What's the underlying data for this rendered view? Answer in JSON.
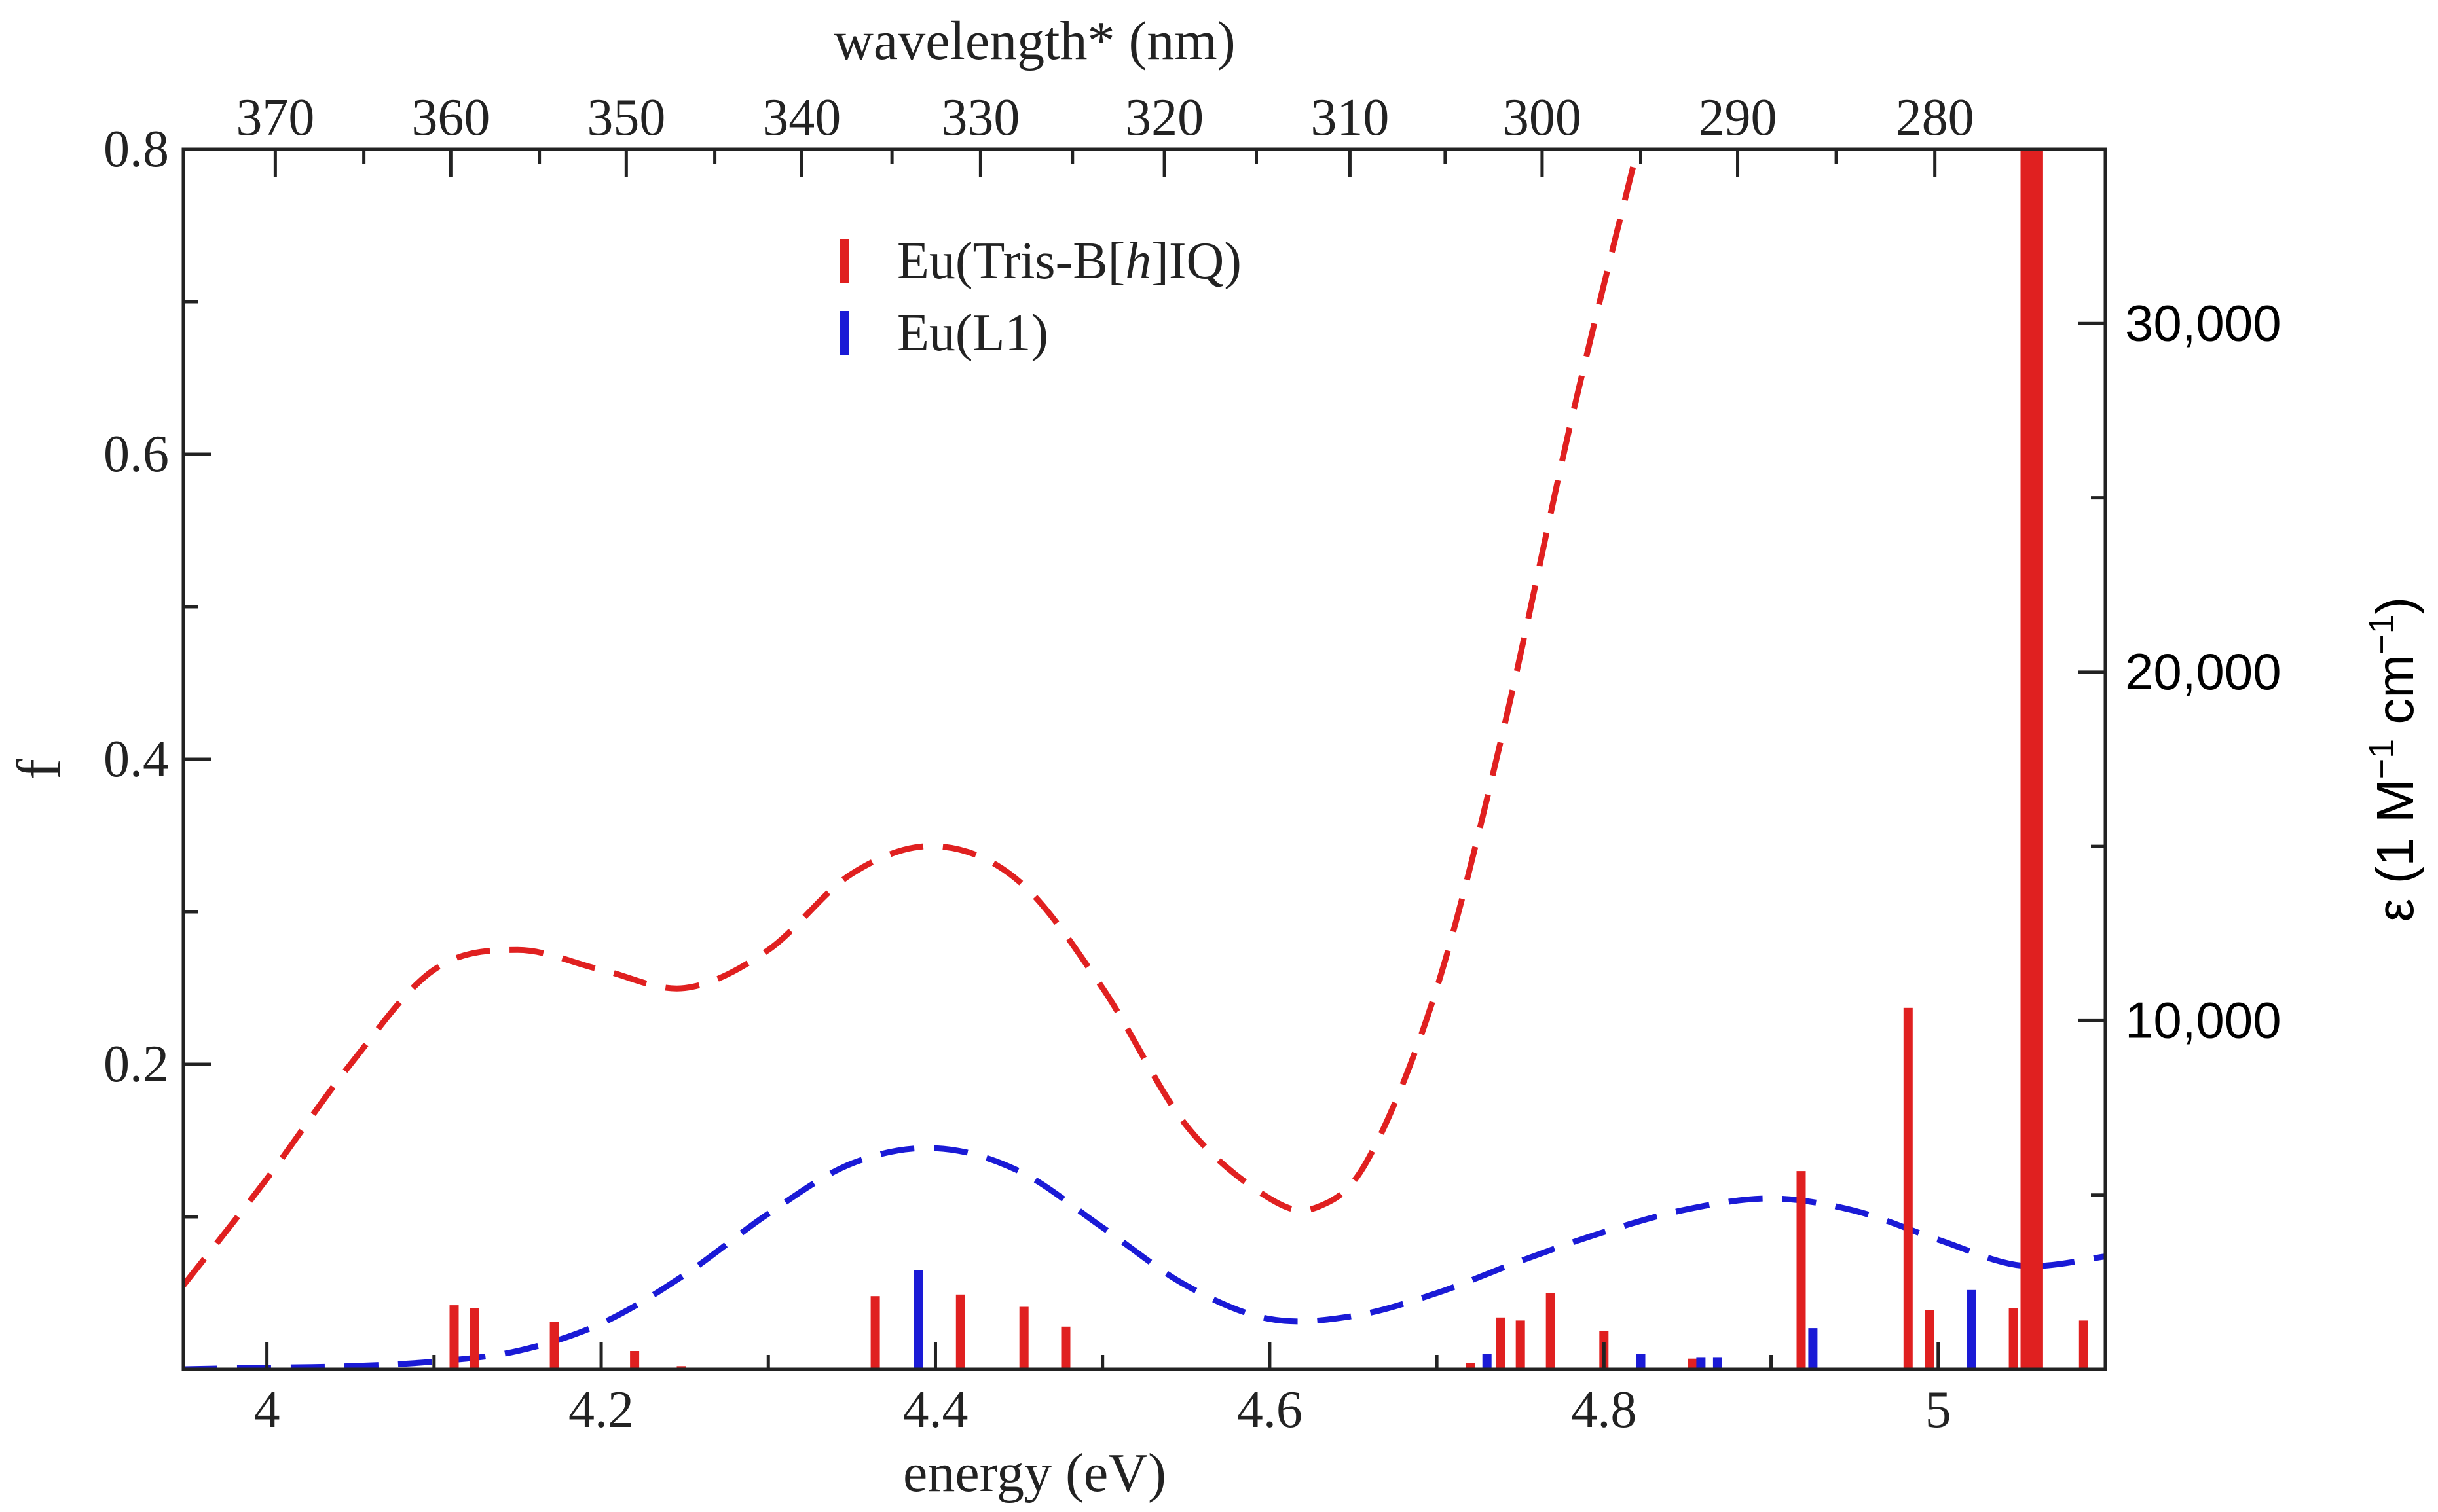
{
  "chart_data": {
    "type": "bar+line",
    "title": "",
    "xlabel": "energy (eV)",
    "x2label": "wavelength* (nm)",
    "ylabel": "f",
    "y2label": {
      "prefix": "ε (1 M",
      "sup1": "−1",
      "mid": " cm",
      "sup2": "−1",
      "suffix": ")"
    },
    "xlim": [
      3.95,
      5.1
    ],
    "ylim": [
      0,
      0.8
    ],
    "y2lim": [
      0,
      35000
    ],
    "grid": false,
    "x_ticks": [
      {
        "value": 4.0,
        "label": "4"
      },
      {
        "value": 4.2,
        "label": "4.2"
      },
      {
        "value": 4.4,
        "label": "4.4"
      },
      {
        "value": 4.6,
        "label": "4.6"
      },
      {
        "value": 4.8,
        "label": "4.8"
      },
      {
        "value": 5.0,
        "label": "5"
      }
    ],
    "x_minor_ticks": [
      4.1,
      4.3,
      4.5,
      4.7,
      4.9,
      5.1
    ],
    "y_ticks": [
      {
        "value": 0.2,
        "label": "0.2"
      },
      {
        "value": 0.4,
        "label": "0.4"
      },
      {
        "value": 0.6,
        "label": "0.6"
      },
      {
        "value": 0.8,
        "label": "0.8"
      }
    ],
    "y_minor_ticks": [
      0.1,
      0.3,
      0.5,
      0.7
    ],
    "y2_ticks": [
      {
        "value": 10000,
        "label": "10,000"
      },
      {
        "value": 20000,
        "label": "20,000"
      },
      {
        "value": 30000,
        "label": "30,000"
      }
    ],
    "y2_minor_ticks": [
      5000,
      15000,
      25000
    ],
    "x2_ticks": [
      {
        "value": 370,
        "label": "370"
      },
      {
        "value": 360,
        "label": "360"
      },
      {
        "value": 350,
        "label": "350"
      },
      {
        "value": 340,
        "label": "340"
      },
      {
        "value": 330,
        "label": "330"
      },
      {
        "value": 320,
        "label": "320"
      },
      {
        "value": 310,
        "label": "310"
      },
      {
        "value": 300,
        "label": "300"
      },
      {
        "value": 290,
        "label": "290"
      },
      {
        "value": 280,
        "label": "280"
      }
    ],
    "x2_minor_ticks": [
      365,
      355,
      345,
      335,
      325,
      315,
      305,
      295,
      285
    ],
    "x2_energy_positions": [
      4.005,
      4.11,
      4.215,
      4.32,
      4.427,
      4.537,
      4.648,
      4.763,
      4.88,
      4.998
    ],
    "x2_minor_energy_positions": [
      4.058,
      4.163,
      4.268,
      4.374,
      4.482,
      4.592,
      4.705,
      4.822,
      4.939
    ],
    "legend": {
      "placement": "top-center",
      "entries": [
        {
          "parts": [
            {
              "text": "Eu(Tris-B["
            },
            {
              "text": "h",
              "italic": true
            },
            {
              "text": "]IQ)"
            }
          ],
          "color": "#e02020"
        },
        {
          "parts": [
            {
              "text": "Eu(L1)"
            }
          ],
          "color": "#1a1ad6"
        }
      ]
    },
    "stick_series": [
      {
        "name": "Eu(Tris-B[h]IQ)",
        "color": "#e02020",
        "x": [
          4.112,
          4.124,
          4.172,
          4.22,
          4.248,
          4.364,
          4.415,
          4.453,
          4.478,
          4.72,
          4.738,
          4.75,
          4.768,
          4.8,
          4.853,
          4.918,
          4.982,
          4.995,
          5.045,
          5.052,
          5.056,
          5.06,
          5.087
        ],
        "values": [
          0.042,
          0.04,
          0.031,
          0.012,
          0.002,
          0.048,
          0.049,
          0.041,
          0.028,
          0.004,
          0.034,
          0.032,
          0.05,
          0.025,
          0.007,
          0.13,
          0.237,
          0.039,
          0.04,
          0.8,
          0.8,
          0.8,
          0.032
        ]
      },
      {
        "name": "Eu(L1)",
        "color": "#1a1ad6",
        "x": [
          4.39,
          4.73,
          4.822,
          4.858,
          4.868,
          4.925,
          5.02
        ],
        "values": [
          0.065,
          0.01,
          0.01,
          0.008,
          0.008,
          0.027,
          0.052
        ]
      }
    ],
    "curve_series": [
      {
        "name": "Eu(Tris-B[h]IQ) ε",
        "color": "#e02020",
        "style": "dashed",
        "x": [
          3.95,
          4.0,
          4.05,
          4.1,
          4.15,
          4.2,
          4.25,
          4.3,
          4.35,
          4.4,
          4.45,
          4.5,
          4.55,
          4.6,
          4.63,
          4.66,
          4.7,
          4.74,
          4.78,
          4.82
        ],
        "y": [
          0.055,
          0.125,
          0.2,
          0.262,
          0.275,
          0.262,
          0.25,
          0.275,
          0.325,
          0.343,
          0.32,
          0.25,
          0.16,
          0.112,
          0.107,
          0.14,
          0.25,
          0.42,
          0.62,
          0.8
        ]
      },
      {
        "name": "Eu(L1) ε",
        "color": "#1a1ad6",
        "style": "dashed",
        "x": [
          3.95,
          4.0,
          4.05,
          4.1,
          4.15,
          4.2,
          4.25,
          4.3,
          4.35,
          4.4,
          4.45,
          4.5,
          4.55,
          4.6,
          4.65,
          4.7,
          4.75,
          4.8,
          4.85,
          4.9,
          4.95,
          5.0,
          5.05,
          5.1
        ],
        "y": [
          0.0,
          0.001,
          0.002,
          0.005,
          0.012,
          0.03,
          0.062,
          0.102,
          0.135,
          0.145,
          0.13,
          0.093,
          0.055,
          0.033,
          0.035,
          0.05,
          0.071,
          0.09,
          0.105,
          0.112,
          0.104,
          0.085,
          0.068,
          0.074
        ]
      }
    ]
  }
}
